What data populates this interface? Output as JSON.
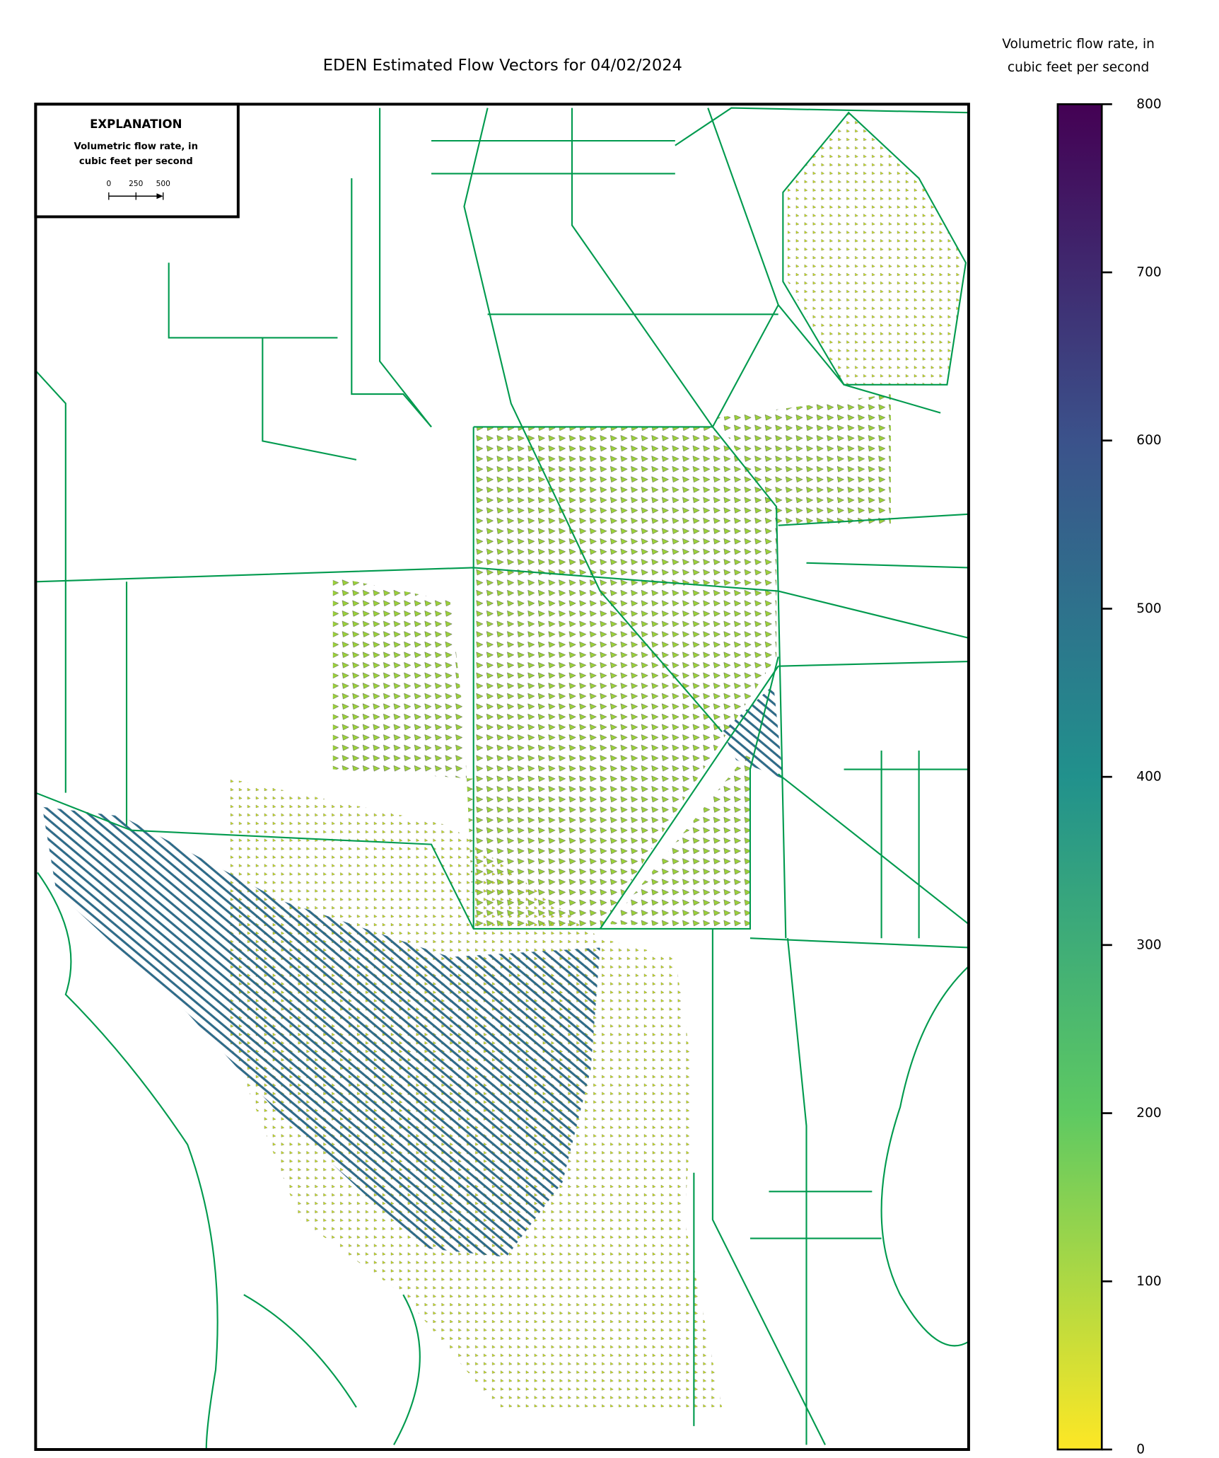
{
  "title": "EDEN Estimated Flow Vectors for 04/02/2024",
  "colorbar": {
    "label": [
      "Volumetric flow rate, in",
      "cubic feet per second"
    ],
    "lim": [
      0,
      800
    ],
    "ticks": [
      0,
      100,
      200,
      300,
      400,
      500,
      600,
      700,
      800
    ]
  },
  "explanation": {
    "title": "EXPLANATION",
    "label": [
      "Volumetric flow rate, in",
      "cubic feet per second"
    ],
    "scale_ticks": [
      0,
      250,
      500
    ]
  }
}
